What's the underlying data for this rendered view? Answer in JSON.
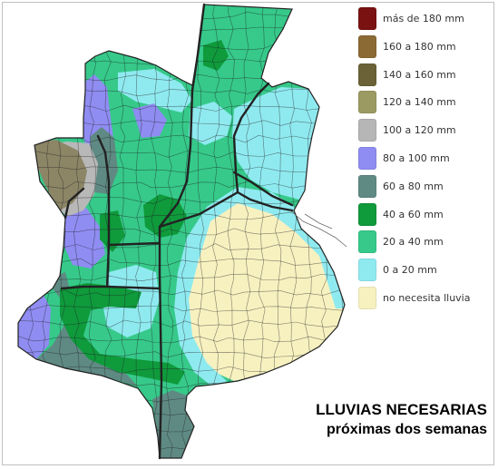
{
  "legend": {
    "items": [
      {
        "label": "más de 180 mm",
        "color": "#7a1212"
      },
      {
        "label": "160 a 180 mm",
        "color": "#8b6a34"
      },
      {
        "label": "140 a 160 mm",
        "color": "#6b6238"
      },
      {
        "label": "120 a 140 mm",
        "color": "#9a9a62"
      },
      {
        "label": "100 a 120 mm",
        "color": "#b6b6b6"
      },
      {
        "label": "80 a 100 mm",
        "color": "#8f8cf2"
      },
      {
        "label": "60 a 80 mm",
        "color": "#5f8a83"
      },
      {
        "label": "40 a 60 mm",
        "color": "#0f9a3c"
      },
      {
        "label": "20 a 40 mm",
        "color": "#36c98a"
      },
      {
        "label": "0 a 20 mm",
        "color": "#8feaf0"
      },
      {
        "label": "no necesita lluvia",
        "color": "#f7f1c0"
      }
    ]
  },
  "caption": {
    "line1": "LLUVIAS NECESARIAS",
    "line2": "próximas dos semanas"
  },
  "map": {
    "zones": {
      "brown": "#8c8566",
      "lightgray": "#b8b8b8",
      "violet": "#8f8cf2",
      "slate": "#5f8a83",
      "darkgreen": "#0f9a3c",
      "green": "#36c98a",
      "cyan": "#8feaf0",
      "cream": "#f7f1c0"
    },
    "border_color": "#222222"
  }
}
